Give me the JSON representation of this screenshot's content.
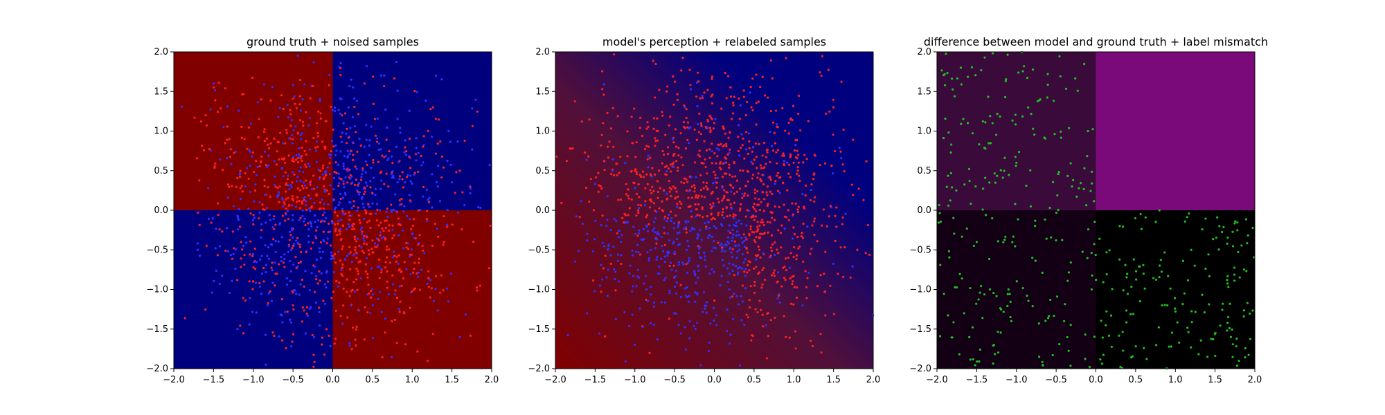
{
  "figure": {
    "background": "#ffffff"
  },
  "chart_data": [
    {
      "type": "scatter",
      "title": "ground truth + noised samples",
      "xlabel": "",
      "ylabel": "",
      "xlim": [
        -2.0,
        2.0
      ],
      "ylim": [
        -2.0,
        2.0
      ],
      "xticks": [
        "−2.0",
        "−1.5",
        "−1.0",
        "−0.5",
        "0.0",
        "0.5",
        "1.0",
        "1.5",
        "2.0"
      ],
      "yticks": [
        "2.0",
        "1.5",
        "1.0",
        "0.5",
        "0.0",
        "−0.5",
        "−1.0",
        "−1.5",
        "−2.0"
      ],
      "grid": false,
      "background_regions": [
        {
          "quadrant": "x<0,y>0",
          "color": "#800000"
        },
        {
          "quadrant": "x>0,y>0",
          "color": "#00007f"
        },
        {
          "quadrant": "x<0,y<0",
          "color": "#00007f"
        },
        {
          "quadrant": "x>0,y<0",
          "color": "#800000"
        }
      ],
      "point_density": 1300,
      "series": [
        {
          "color": "#ff2020",
          "points": [
            [
              -1.6,
              1.2
            ],
            [
              -1.3,
              0.9
            ],
            [
              -0.9,
              1.4
            ],
            [
              -0.6,
              0.6
            ],
            [
              -0.2,
              1.1
            ],
            [
              0.4,
              1.6
            ],
            [
              0.7,
              0.3
            ],
            [
              1.2,
              1.0
            ],
            [
              1.6,
              0.5
            ],
            [
              -1.0,
              -0.9
            ],
            [
              -0.7,
              -0.8
            ],
            [
              -0.5,
              -1.2
            ],
            [
              0.3,
              -0.6
            ],
            [
              0.9,
              -1.3
            ],
            [
              1.4,
              -0.4
            ]
          ]
        },
        {
          "color": "#3030ff",
          "points": [
            [
              -1.5,
              1.6
            ],
            [
              -1.1,
              0.3
            ],
            [
              -0.4,
              0.9
            ],
            [
              0.2,
              1.3
            ],
            [
              0.8,
              0.8
            ],
            [
              1.3,
              1.7
            ],
            [
              -1.7,
              -0.5
            ],
            [
              -1.2,
              -1.5
            ],
            [
              -0.3,
              -0.4
            ],
            [
              0.5,
              -1.0
            ],
            [
              1.0,
              -0.3
            ],
            [
              1.6,
              -1.6
            ]
          ]
        }
      ]
    },
    {
      "type": "scatter",
      "title": "model's perception + relabeled samples",
      "xlabel": "",
      "ylabel": "",
      "xlim": [
        -2.0,
        2.0
      ],
      "ylim": [
        -2.0,
        2.0
      ],
      "xticks": [
        "−2.0",
        "−1.5",
        "−1.0",
        "−0.5",
        "0.0",
        "0.5",
        "1.0",
        "1.5",
        "2.0"
      ],
      "yticks": [
        "2.0",
        "1.5",
        "1.0",
        "0.5",
        "0.0",
        "−0.5",
        "−1.0",
        "−1.5",
        "−2.0"
      ],
      "grid": false,
      "background_gradient": {
        "from": "#800000",
        "to": "#00007f",
        "direction": "left-to-right, bottom-left to top-right"
      },
      "point_density": 1300,
      "series": [
        {
          "color": "#ff2020",
          "points": [
            [
              -1.4,
              1.1
            ],
            [
              -1.0,
              0.5
            ],
            [
              -0.6,
              1.5
            ],
            [
              -0.2,
              0.7
            ],
            [
              0.1,
              0.3
            ],
            [
              0.4,
              1.2
            ],
            [
              0.6,
              -0.3
            ],
            [
              0.8,
              -0.9
            ],
            [
              1.0,
              0.6
            ],
            [
              1.5,
              1.3
            ],
            [
              1.8,
              -0.5
            ],
            [
              0.9,
              -1.6
            ]
          ]
        },
        {
          "color": "#3030ff",
          "points": [
            [
              -1.6,
              -0.3
            ],
            [
              -1.2,
              -0.9
            ],
            [
              -0.8,
              -0.5
            ],
            [
              -0.5,
              -1.3
            ],
            [
              -0.2,
              -0.7
            ],
            [
              0.0,
              -0.2
            ],
            [
              -1.0,
              -1.7
            ],
            [
              0.2,
              -1.1
            ]
          ]
        }
      ]
    },
    {
      "type": "scatter",
      "title": "difference between model and ground truth + label mismatch",
      "xlabel": "",
      "ylabel": "",
      "xlim": [
        -2.0,
        2.0
      ],
      "ylim": [
        -2.0,
        2.0
      ],
      "xticks": [
        "−2.0",
        "−1.5",
        "−1.0",
        "−0.5",
        "0.0",
        "0.5",
        "1.0",
        "1.5",
        "2.0"
      ],
      "yticks": [
        "2.0",
        "1.5",
        "1.0",
        "0.5",
        "0.0",
        "−0.5",
        "−1.0",
        "−1.5",
        "−2.0"
      ],
      "grid": false,
      "background_regions": [
        {
          "quadrant": "x<0,y>0",
          "color": "#3a0a3a"
        },
        {
          "quadrant": "x>0,y>0",
          "color": "#7a0a7a"
        },
        {
          "quadrant": "x<0,y<0",
          "color": "#140014"
        },
        {
          "quadrant": "x>0,y<0",
          "color": "#000000"
        }
      ],
      "point_density": 650,
      "series": [
        {
          "color": "#20c020",
          "points": [
            [
              -1.7,
              1.8
            ],
            [
              -1.3,
              1.1
            ],
            [
              -1.0,
              0.6
            ],
            [
              -0.7,
              1.4
            ],
            [
              -0.3,
              0.3
            ],
            [
              -0.1,
              1.0
            ],
            [
              -1.5,
              -0.4
            ],
            [
              -1.1,
              -1.0
            ],
            [
              -0.8,
              -0.6
            ],
            [
              -0.4,
              -1.4
            ],
            [
              0.3,
              -0.2
            ],
            [
              0.6,
              -0.8
            ],
            [
              0.9,
              -1.2
            ],
            [
              1.2,
              -0.5
            ],
            [
              1.7,
              -1.6
            ]
          ]
        }
      ]
    }
  ]
}
